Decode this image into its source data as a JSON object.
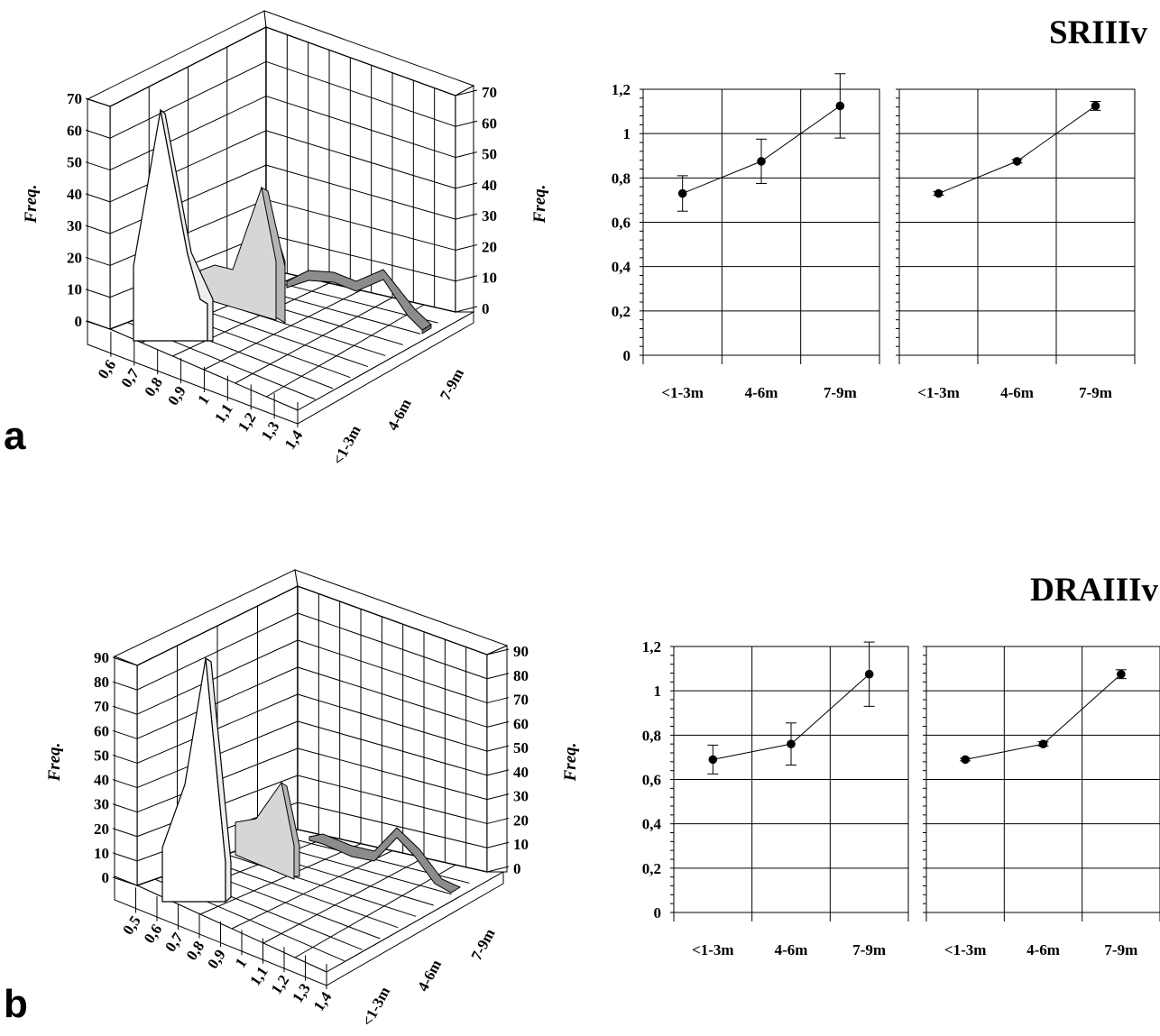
{
  "panels": [
    {
      "label": "a",
      "title": "SRIIIv",
      "freq_label": "Freq.",
      "chart_3d": {
        "type": "area3d",
        "y_ticks": [
          "0",
          "10",
          "20",
          "30",
          "40",
          "50",
          "60",
          "70"
        ],
        "x_ticks": [
          "0,6",
          "0,7",
          "0,8",
          "0,9",
          "1",
          "1,1",
          "1,2",
          "1,3",
          "1,4"
        ],
        "depth_ticks": [
          "<1-3m",
          "4-6m",
          "7-9m"
        ]
      },
      "line_charts": [
        {
          "type": "line",
          "error_bars": "SD",
          "categories": [
            "<1-3m",
            "4-6m",
            "7-9m"
          ],
          "y_ticks": [
            "0",
            "0,2",
            "0,4",
            "0,6",
            "0,8",
            "1",
            "1,2"
          ],
          "ylim": [
            0,
            1.2
          ],
          "values": [
            0.73,
            0.875,
            1.125
          ],
          "errors": [
            0.08,
            0.1,
            0.145
          ]
        },
        {
          "type": "line",
          "error_bars": "SE",
          "categories": [
            "<1-3m",
            "4-6m",
            "7-9m"
          ],
          "values": [
            0.73,
            0.875,
            1.125
          ],
          "errors": [
            0.008,
            0.008,
            0.02
          ]
        }
      ]
    },
    {
      "label": "b",
      "title": "DRAIIIv",
      "freq_label": "Freq.",
      "chart_3d": {
        "type": "area3d",
        "y_ticks": [
          "0",
          "10",
          "20",
          "30",
          "40",
          "50",
          "60",
          "70",
          "80",
          "90"
        ],
        "x_ticks": [
          "0,5",
          "0,6",
          "0,7",
          "0,8",
          "0,9",
          "1",
          "1,1",
          "1,2",
          "1,3",
          "1,4"
        ],
        "depth_ticks": [
          "<1-3m",
          "4-6m",
          "7-9m"
        ]
      },
      "line_charts": [
        {
          "type": "line",
          "error_bars": "SD",
          "categories": [
            "<1-3m",
            "4-6m",
            "7-9m"
          ],
          "y_ticks": [
            "0",
            "0,2",
            "0,4",
            "0,6",
            "0,8",
            "1",
            "1,2"
          ],
          "ylim": [
            0,
            1.2
          ],
          "values": [
            0.69,
            0.76,
            1.075
          ],
          "errors": [
            0.065,
            0.095,
            0.145
          ]
        },
        {
          "type": "line",
          "error_bars": "SE",
          "categories": [
            "<1-3m",
            "4-6m",
            "7-9m"
          ],
          "values": [
            0.69,
            0.76,
            1.075
          ],
          "errors": [
            0.006,
            0.01,
            0.02
          ]
        }
      ]
    }
  ],
  "chart_data": [
    {
      "type": "line",
      "panel": "a",
      "title": "SRIIIv",
      "categories": [
        "<1-3m",
        "4-6m",
        "7-9m"
      ],
      "ylim": [
        0,
        1.2
      ],
      "series": [
        {
          "values": [
            0.73,
            0.875,
            1.125
          ],
          "error": [
            0.08,
            0.1,
            0.145
          ]
        }
      ]
    },
    {
      "type": "line",
      "panel": "a",
      "categories": [
        "<1-3m",
        "4-6m",
        "7-9m"
      ],
      "ylim": [
        0,
        1.2
      ],
      "series": [
        {
          "values": [
            0.73,
            0.875,
            1.125
          ],
          "error": [
            0.008,
            0.008,
            0.02
          ]
        }
      ]
    },
    {
      "type": "line",
      "panel": "b",
      "title": "DRAIIIv",
      "categories": [
        "<1-3m",
        "4-6m",
        "7-9m"
      ],
      "ylim": [
        0,
        1.2
      ],
      "series": [
        {
          "values": [
            0.69,
            0.76,
            1.075
          ],
          "error": [
            0.065,
            0.095,
            0.145
          ]
        }
      ]
    },
    {
      "type": "line",
      "panel": "b",
      "categories": [
        "<1-3m",
        "4-6m",
        "7-9m"
      ],
      "ylim": [
        0,
        1.2
      ],
      "series": [
        {
          "values": [
            0.69,
            0.76,
            1.075
          ],
          "error": [
            0.006,
            0.01,
            0.02
          ]
        }
      ]
    },
    {
      "type": "area",
      "panel": "a",
      "ylabel": "Freq.",
      "x": [
        "0,6",
        "0,7",
        "0,8",
        "0,9",
        "1",
        "1,1",
        "1,2",
        "1,3",
        "1,4"
      ],
      "series": [
        {
          "name": "<1-3m",
          "values": [
            12,
            65,
            18,
            8,
            0,
            0,
            0,
            0,
            0
          ]
        },
        {
          "name": "4-6m",
          "values": [
            0,
            0,
            8,
            9,
            18,
            40,
            12,
            0,
            0
          ]
        },
        {
          "name": "7-9m",
          "values": [
            0,
            0,
            0,
            4,
            6,
            5,
            10,
            3,
            0
          ]
        }
      ],
      "ylim": [
        0,
        70
      ]
    },
    {
      "type": "area",
      "panel": "b",
      "ylabel": "Freq.",
      "x": [
        "0,5",
        "0,6",
        "0,7",
        "0,8",
        "0,9",
        "1",
        "1,1",
        "1,2",
        "1,3",
        "1,4"
      ],
      "series": [
        {
          "name": "<1-3m",
          "values": [
            0,
            15,
            85,
            0,
            0,
            0,
            0,
            0,
            0,
            0
          ]
        },
        {
          "name": "4-6m",
          "values": [
            0,
            0,
            0,
            25,
            28,
            46,
            30,
            0,
            0,
            0
          ]
        },
        {
          "name": "7-9m",
          "values": [
            0,
            0,
            0,
            0,
            4,
            8,
            12,
            24,
            10,
            0
          ]
        }
      ],
      "ylim": [
        0,
        90
      ]
    }
  ],
  "colors": {
    "series_front": "#ffffff",
    "series_middle": "#d6d6d6",
    "series_back": "#8c8c8c",
    "grid": "#000000"
  }
}
